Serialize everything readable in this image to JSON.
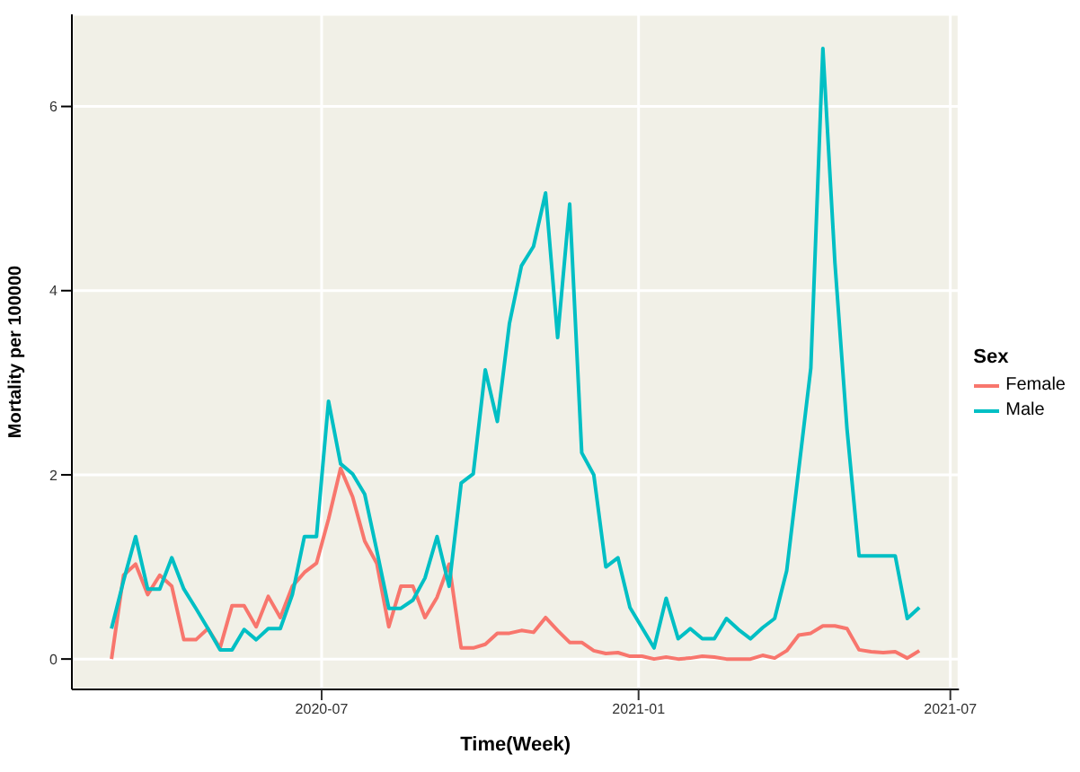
{
  "chart_data": {
    "type": "line",
    "xlabel": "Time(Week)",
    "ylabel": "Mortality per 100000",
    "legend_title": "Sex",
    "legend": "right",
    "grid": true,
    "x": [
      "2020-03-01",
      "2020-03-08",
      "2020-03-15",
      "2020-03-22",
      "2020-03-29",
      "2020-04-05",
      "2020-04-12",
      "2020-04-19",
      "2020-04-26",
      "2020-05-03",
      "2020-05-10",
      "2020-05-17",
      "2020-05-24",
      "2020-05-31",
      "2020-06-07",
      "2020-06-14",
      "2020-06-21",
      "2020-06-28",
      "2020-07-05",
      "2020-07-12",
      "2020-07-19",
      "2020-07-26",
      "2020-08-02",
      "2020-08-09",
      "2020-08-16",
      "2020-08-23",
      "2020-08-30",
      "2020-09-06",
      "2020-09-13",
      "2020-09-20",
      "2020-09-27",
      "2020-10-04",
      "2020-10-11",
      "2020-10-18",
      "2020-10-25",
      "2020-11-01",
      "2020-11-08",
      "2020-11-15",
      "2020-11-22",
      "2020-11-29",
      "2020-12-06",
      "2020-12-13",
      "2020-12-20",
      "2020-12-27",
      "2021-01-03",
      "2021-01-10",
      "2021-01-17",
      "2021-01-24",
      "2021-01-31",
      "2021-02-07",
      "2021-02-14",
      "2021-02-21",
      "2021-02-28",
      "2021-03-07",
      "2021-03-14",
      "2021-03-21",
      "2021-03-28",
      "2021-04-04",
      "2021-04-11",
      "2021-04-18",
      "2021-04-25",
      "2021-05-02",
      "2021-05-09",
      "2021-05-16",
      "2021-05-23",
      "2021-05-30",
      "2021-06-06",
      "2021-06-13"
    ],
    "series": [
      {
        "name": "Female",
        "color": "#f8766d",
        "values": [
          0,
          0.91,
          1.03,
          0.7,
          0.91,
          0.79,
          0.21,
          0.21,
          0.33,
          0.12,
          0.58,
          0.58,
          0.35,
          0.68,
          0.45,
          0.79,
          0.94,
          1.04,
          1.52,
          2.07,
          1.76,
          1.28,
          1.04,
          0.35,
          0.79,
          0.79,
          0.45,
          0.67,
          1.03,
          0.12,
          0.12,
          0.16,
          0.28,
          0.28,
          0.31,
          0.29,
          0.45,
          0.31,
          0.18,
          0.18,
          0.09,
          0.06,
          0.07,
          0.03,
          0.03,
          0,
          0.02,
          0,
          0.01,
          0.03,
          0.02,
          0,
          0,
          0,
          0.04,
          0.01,
          0.09,
          0.26,
          0.28,
          0.36,
          0.36,
          0.33,
          0.1,
          0.08,
          0.07,
          0.08,
          0.01,
          0.09
        ]
      },
      {
        "name": "Male",
        "color": "#00bfc4",
        "values": [
          0.33,
          0.85,
          1.33,
          0.76,
          0.76,
          1.1,
          0.76,
          0.55,
          0.33,
          0.1,
          0.1,
          0.32,
          0.21,
          0.33,
          0.33,
          0.7,
          1.33,
          1.33,
          2.8,
          2.12,
          2.01,
          1.79,
          1.18,
          0.55,
          0.55,
          0.64,
          0.88,
          1.33,
          0.79,
          1.91,
          2.01,
          3.14,
          2.58,
          3.64,
          4.27,
          4.48,
          5.06,
          3.49,
          4.94,
          2.24,
          2,
          1,
          1.1,
          0.56,
          0.34,
          0.12,
          0.66,
          0.22,
          0.33,
          0.22,
          0.22,
          0.44,
          0.32,
          0.22,
          0.34,
          0.44,
          0.96,
          2.06,
          3.16,
          6.63,
          4.3,
          2.5,
          1.12,
          1.12,
          1.12,
          1.12,
          0.44,
          0.56
        ]
      }
    ],
    "xlim": [
      "2020-02-07",
      "2021-07-06"
    ],
    "xticks": [
      "2020-07",
      "2021-01",
      "2021-07"
    ],
    "ylim": [
      -0.33,
      7.0
    ],
    "yticks": [
      0,
      2,
      4,
      6
    ]
  }
}
